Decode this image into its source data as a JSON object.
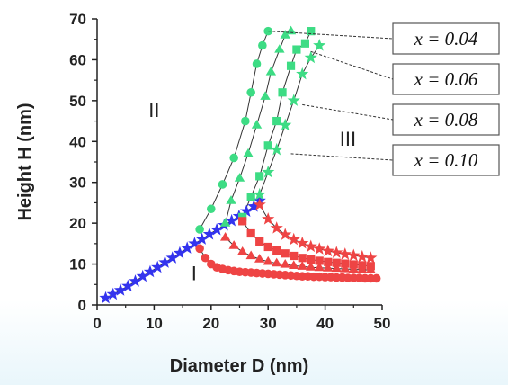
{
  "chart_data": {
    "type": "scatter",
    "xlabel": "Diameter D (nm)",
    "ylabel": "Height H (nm)",
    "xlim": [
      0,
      50
    ],
    "ylim": [
      0,
      70
    ],
    "xticks": [
      0,
      10,
      20,
      30,
      40,
      50
    ],
    "yticks": [
      0,
      10,
      20,
      30,
      40,
      50,
      60,
      70
    ],
    "grid": false,
    "colors": {
      "green": "#3ddc84",
      "red": "#ee4444",
      "blue": "#3333ee"
    },
    "region_labels": [
      {
        "text": "I",
        "x": 17,
        "y": 6
      },
      {
        "text": "II",
        "x": 10,
        "y": 46
      },
      {
        "text": "III",
        "x": 44,
        "y": 39
      }
    ],
    "legend": [
      {
        "label": "x = 0.04",
        "marker": "circle"
      },
      {
        "label": "x = 0.06",
        "marker": "triangle"
      },
      {
        "label": "x = 0.08",
        "marker": "square"
      },
      {
        "label": "x = 0.10",
        "marker": "star"
      }
    ],
    "series": [
      {
        "color": "blue",
        "marker": "star",
        "x": [
          1.5,
          2.8,
          4.1,
          5.4,
          6.7,
          8,
          9.3,
          10.6,
          11.9,
          13.2,
          14.5,
          15.8,
          17.1,
          18.4,
          19.7,
          21,
          22.3,
          23.6,
          24.9,
          26.2,
          27.5,
          28.5
        ],
        "y": [
          1.7,
          2.6,
          3.6,
          4.6,
          5.8,
          7,
          8.1,
          9.2,
          10.4,
          11.5,
          12.7,
          13.9,
          15.0,
          16.1,
          17.3,
          18.4,
          19.5,
          20.6,
          21.7,
          22.9,
          24.1,
          25.5
        ]
      },
      {
        "color": "green",
        "marker": "circle",
        "x": [
          18,
          20,
          22,
          24,
          26,
          27,
          28,
          29,
          30
        ],
        "y": [
          18.5,
          23.5,
          29.5,
          36,
          45,
          52,
          59,
          63.5,
          67
        ]
      },
      {
        "color": "green",
        "marker": "triangle",
        "x": [
          22.5,
          23.5,
          25,
          26.5,
          28,
          29.5,
          30.5,
          32,
          33,
          34
        ],
        "y": [
          20,
          25.5,
          31,
          37,
          44,
          51,
          57,
          62.5,
          66,
          67
        ]
      },
      {
        "color": "green",
        "marker": "square",
        "x": [
          25.5,
          27,
          28.5,
          30,
          31.5,
          32.5,
          34,
          35,
          36.5,
          37.5
        ],
        "y": [
          21.5,
          26.5,
          31.5,
          39,
          45,
          52,
          58.5,
          62.5,
          64,
          67
        ]
      },
      {
        "color": "green",
        "marker": "star",
        "x": [
          28.5,
          30,
          31.5,
          33,
          34.5,
          36,
          37.5,
          39
        ],
        "y": [
          27,
          32.5,
          38,
          44,
          50,
          56.5,
          60.5,
          63.5
        ]
      },
      {
        "color": "red",
        "marker": "circle",
        "x": [
          18,
          19,
          20,
          21,
          22,
          23,
          24,
          25,
          26,
          27,
          28,
          29,
          30,
          31,
          32,
          33,
          34,
          35,
          36,
          37,
          38,
          39,
          40,
          41,
          42,
          43,
          44,
          45,
          46,
          47,
          48,
          49
        ],
        "y": [
          13.8,
          11.5,
          10,
          9.2,
          8.8,
          8.5,
          8.3,
          8.1,
          8,
          7.9,
          7.8,
          7.7,
          7.6,
          7.5,
          7.4,
          7.3,
          7.2,
          7.1,
          7.0,
          7.0,
          6.9,
          6.9,
          6.8,
          6.8,
          6.7,
          6.7,
          6.6,
          6.6,
          6.6,
          6.5,
          6.5,
          6.5
        ]
      },
      {
        "color": "red",
        "marker": "triangle",
        "x": [
          22.5,
          24,
          25.5,
          27,
          28.5,
          30,
          31.5,
          33,
          34.5,
          36,
          37.5,
          39,
          40.5,
          42,
          43.5,
          45,
          46.5,
          48
        ],
        "y": [
          16.5,
          14.5,
          13,
          12,
          11.2,
          10.6,
          10.2,
          9.9,
          9.6,
          9.4,
          9.2,
          9.1,
          9.0,
          8.9,
          8.8,
          8.7,
          8.6,
          8.5
        ]
      },
      {
        "color": "red",
        "marker": "square",
        "x": [
          25.5,
          27,
          28.5,
          30,
          31.5,
          33,
          34.5,
          36,
          37.5,
          39,
          40.5,
          42,
          43.5,
          45,
          46.5,
          48
        ],
        "y": [
          20.5,
          17.5,
          15.5,
          14.2,
          13.3,
          12.6,
          12.0,
          11.5,
          11.1,
          10.8,
          10.5,
          10.3,
          10.1,
          9.9,
          9.7,
          9.5
        ]
      },
      {
        "color": "red",
        "marker": "star",
        "x": [
          28.5,
          30,
          31.5,
          33,
          34.5,
          36,
          37.5,
          39,
          40.5,
          42,
          43.5,
          45,
          46.5,
          48
        ],
        "y": [
          24.5,
          21,
          18.8,
          17.2,
          16.0,
          15.1,
          14.3,
          13.7,
          13.2,
          12.8,
          12.4,
          12.1,
          11.8,
          11.5
        ]
      }
    ],
    "legend_targets": [
      {
        "x": 30,
        "y": 67
      },
      {
        "x": 37.5,
        "y": 62
      },
      {
        "x": 36,
        "y": 49
      },
      {
        "x": 34,
        "y": 37
      }
    ]
  }
}
